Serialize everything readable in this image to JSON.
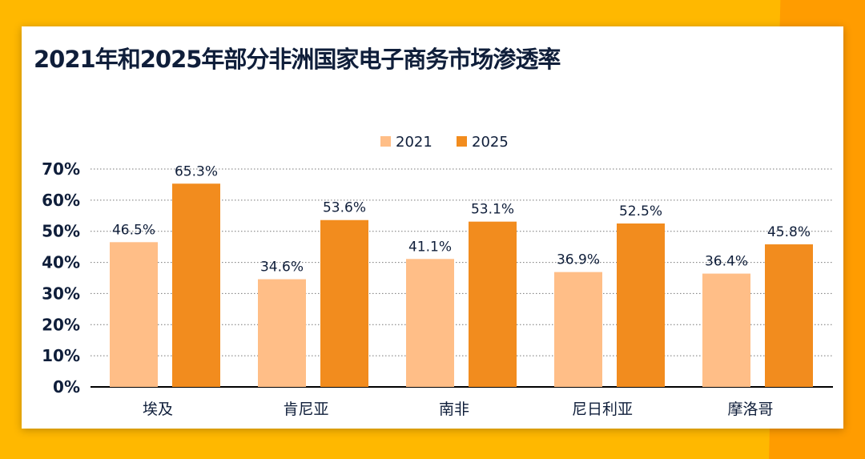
{
  "title": "2021年和2025年部分非洲国家电子商务市场渗透率",
  "colors": {
    "background": "#FFB800",
    "series_2021": "#FFBE87",
    "series_2025": "#F28C1E",
    "text": "#0f1e3a"
  },
  "chart_data": {
    "type": "bar",
    "title": "2021年和2025年部分非洲国家电子商务市场渗透率",
    "categories": [
      "埃及",
      "肯尼亚",
      "南非",
      "尼日利亚",
      "摩洛哥"
    ],
    "series": [
      {
        "name": "2021",
        "values": [
          46.5,
          34.6,
          41.1,
          36.9,
          36.4
        ],
        "labels": [
          "46.5%",
          "34.6%",
          "41.1%",
          "36.9%",
          "36.4%"
        ]
      },
      {
        "name": "2025",
        "values": [
          65.3,
          53.6,
          53.1,
          52.5,
          45.8
        ],
        "labels": [
          "65.3%",
          "53.6%",
          "53.1%",
          "52.5%",
          "45.8%"
        ]
      }
    ],
    "ylim": [
      0,
      70
    ],
    "yticks": [
      "0%",
      "10%",
      "20%",
      "30%",
      "40%",
      "50%",
      "60%",
      "70%"
    ],
    "grid": true,
    "legend_position": "top-center"
  }
}
